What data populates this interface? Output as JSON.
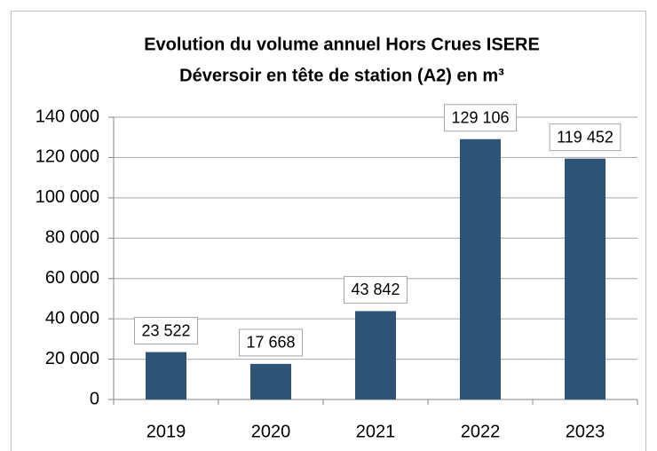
{
  "chart_data": {
    "type": "bar",
    "title": "Evolution du volume annuel Hors Crues ISERE",
    "subtitle": "Déversoir en tête de station (A2) en m³",
    "categories": [
      "2019",
      "2020",
      "2021",
      "2022",
      "2023"
    ],
    "values": [
      23522,
      17668,
      43842,
      129106,
      119452
    ],
    "value_labels": [
      "23 522",
      "17 668",
      "43 842",
      "129 106",
      "119 452"
    ],
    "color": "#2e5475",
    "ylim": [
      0,
      140000
    ],
    "yticks": [
      0,
      {
        "value": 20000,
        "label": "20 000"
      },
      {
        "value": 40000,
        "label": "40 000"
      },
      {
        "value": 60000,
        "label": "60 000"
      },
      {
        "value": 80000,
        "label": "80 000"
      },
      {
        "value": 100000,
        "label": "100 000"
      },
      {
        "value": 120000,
        "label": "120 000"
      },
      {
        "value": 140000,
        "label": "140 000"
      }
    ],
    "grid": true
  }
}
